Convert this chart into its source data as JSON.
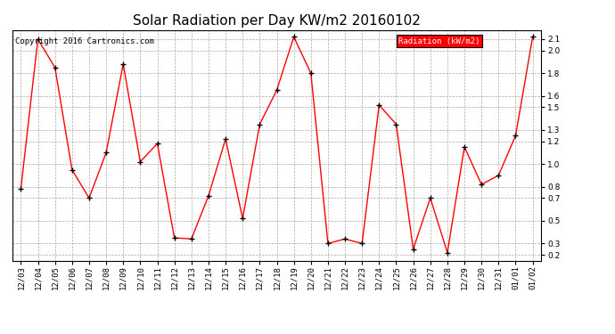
{
  "title": "Solar Radiation per Day KW/m2 20160102",
  "copyright_text": "Copyright 2016 Cartronics.com",
  "legend_label": "Radiation (kW/m2)",
  "dates": [
    "12/03",
    "12/04",
    "12/05",
    "12/06",
    "12/07",
    "12/08",
    "12/09",
    "12/10",
    "12/11",
    "12/12",
    "12/13",
    "12/14",
    "12/15",
    "12/16",
    "12/17",
    "12/18",
    "12/19",
    "12/20",
    "12/21",
    "12/22",
    "12/23",
    "12/24",
    "12/25",
    "12/26",
    "12/27",
    "12/28",
    "12/29",
    "12/30",
    "12/31",
    "01/01",
    "01/02"
  ],
  "values": [
    0.78,
    2.1,
    1.85,
    0.95,
    0.7,
    1.1,
    1.88,
    1.02,
    1.18,
    0.35,
    0.34,
    0.72,
    1.22,
    0.52,
    1.35,
    1.65,
    2.12,
    1.8,
    0.3,
    0.34,
    0.3,
    1.52,
    1.35,
    0.25,
    0.7,
    0.22,
    1.15,
    0.82,
    0.9,
    1.25,
    2.12
  ],
  "line_color": "#ff0000",
  "marker_color": "#000000",
  "background_color": "#ffffff",
  "grid_color": "#aaaaaa",
  "ylim": [
    0.15,
    2.18
  ],
  "yticks": [
    0.2,
    0.3,
    0.5,
    0.7,
    0.8,
    1.0,
    1.2,
    1.3,
    1.5,
    1.6,
    1.8,
    2.0,
    2.1
  ],
  "title_fontsize": 11,
  "tick_fontsize": 6.5,
  "copyright_fontsize": 6.5,
  "legend_bg": "#ff0000",
  "legend_text_color": "#ffffff",
  "legend_fontsize": 6.5
}
